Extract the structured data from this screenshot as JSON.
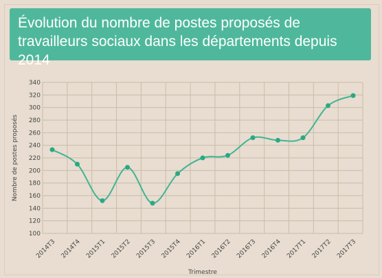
{
  "title": "Évolution du nombre de postes proposés de travailleurs sociaux dans les départements depuis 2014",
  "colors": {
    "banner": "#4fb89c",
    "line": "#3fb594",
    "point": "#2aa884",
    "grid": "#c9bcaa",
    "background": "#e8ddd0"
  },
  "chart_data": {
    "type": "line",
    "title": "Évolution du nombre de postes proposés de travailleurs sociaux dans les départements depuis 2014",
    "xlabel": "Trimestre",
    "ylabel": "Nombre de postes proposés",
    "categories": [
      "2014T3",
      "2014T4",
      "2015T1",
      "2015T2",
      "2015T3",
      "2015T4",
      "2016T1",
      "2016T2",
      "2016T3",
      "2016T4",
      "2017T1",
      "2017T2",
      "2017T3"
    ],
    "values": [
      233,
      210,
      152,
      205,
      148,
      195,
      220,
      224,
      252,
      248,
      252,
      303,
      319
    ],
    "ylim": [
      100,
      340
    ],
    "yticks": [
      100,
      120,
      140,
      160,
      180,
      200,
      220,
      240,
      260,
      280,
      300,
      320,
      340
    ],
    "grid": true,
    "smooth": true
  }
}
